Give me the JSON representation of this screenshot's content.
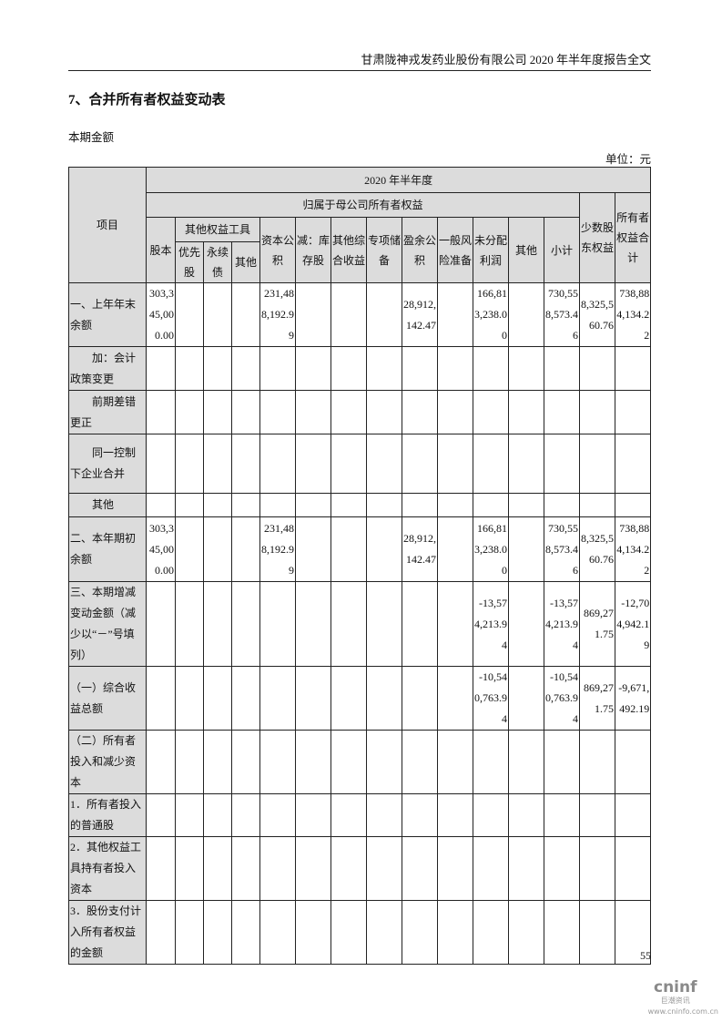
{
  "header": {
    "title": "甘肃陇神戎发药业股份有限公司 2020 年半年度报告全文"
  },
  "section_title": "7、合并所有者权益变动表",
  "subtitle": "本期金额",
  "unit": "单位：元",
  "table": {
    "col_item": "项目",
    "period": "2020 年半年度",
    "parent_group": "归属于母公司所有者权益",
    "other_equity_group": "其他权益工具",
    "columns": [
      "股本",
      "优先股",
      "永续债",
      "其他",
      "资本公积",
      "减：库存股",
      "其他综合收益",
      "专项储备",
      "盈余公积",
      "一般风险准备",
      "未分配利润",
      "其他",
      "小计",
      "少数股东权益",
      "所有者权益合计"
    ],
    "rows": [
      {
        "label": "一、上年年末余额",
        "values": [
          "303,345,000.00",
          "",
          "",
          "",
          "231,488,192.99",
          "",
          "",
          "",
          "28,912,142.47",
          "",
          "166,813,238.00",
          "",
          "730,558,573.46",
          "8,325,560.76",
          "738,884,134.22"
        ]
      },
      {
        "label": "加：会计政策变更",
        "values": [
          "",
          "",
          "",
          "",
          "",
          "",
          "",
          "",
          "",
          "",
          "",
          "",
          "",
          "",
          ""
        ]
      },
      {
        "label": "前期差错更正",
        "values": [
          "",
          "",
          "",
          "",
          "",
          "",
          "",
          "",
          "",
          "",
          "",
          "",
          "",
          "",
          ""
        ]
      },
      {
        "label": "同一控制下企业合并",
        "values": [
          "",
          "",
          "",
          "",
          "",
          "",
          "",
          "",
          "",
          "",
          "",
          "",
          "",
          "",
          ""
        ]
      },
      {
        "label": "其他",
        "values": [
          "",
          "",
          "",
          "",
          "",
          "",
          "",
          "",
          "",
          "",
          "",
          "",
          "",
          "",
          ""
        ]
      },
      {
        "label": "二、本年期初余额",
        "values": [
          "303,345,000.00",
          "",
          "",
          "",
          "231,488,192.99",
          "",
          "",
          "",
          "28,912,142.47",
          "",
          "166,813,238.00",
          "",
          "730,558,573.46",
          "8,325,560.76",
          "738,884,134.22"
        ]
      },
      {
        "label": "三、本期增减变动金额（减少以“－”号填列）",
        "values": [
          "",
          "",
          "",
          "",
          "",
          "",
          "",
          "",
          "",
          "",
          "-13,574,213.94",
          "",
          "-13,574,213.94",
          "869,271.75",
          "-12,704,942.19"
        ]
      },
      {
        "label": "（一）综合收益总额",
        "values": [
          "",
          "",
          "",
          "",
          "",
          "",
          "",
          "",
          "",
          "",
          "-10,540,763.94",
          "",
          "-10,540,763.94",
          "869,271.75",
          "-9,671,492.19"
        ]
      },
      {
        "label": "（二）所有者投入和减少资本",
        "values": [
          "",
          "",
          "",
          "",
          "",
          "",
          "",
          "",
          "",
          "",
          "",
          "",
          "",
          "",
          ""
        ]
      },
      {
        "label": "1．所有者投入的普通股",
        "values": [
          "",
          "",
          "",
          "",
          "",
          "",
          "",
          "",
          "",
          "",
          "",
          "",
          "",
          "",
          ""
        ]
      },
      {
        "label": "2．其他权益工具持有者投入资本",
        "values": [
          "",
          "",
          "",
          "",
          "",
          "",
          "",
          "",
          "",
          "",
          "",
          "",
          "",
          "",
          ""
        ]
      },
      {
        "label": "3．股份支付计入所有者权益的金额",
        "values": [
          "",
          "",
          "",
          "",
          "",
          "",
          "",
          "",
          "",
          "",
          "",
          "",
          "",
          "",
          ""
        ]
      }
    ]
  },
  "page_number": "55",
  "footer": {
    "logo_text": "cninf",
    "logo_cn": "巨潮资讯",
    "url": "www.cninfo.com.cn"
  }
}
